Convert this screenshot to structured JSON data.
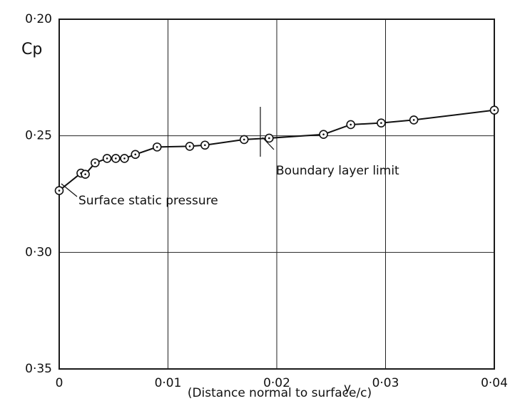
{
  "chart_data": {
    "type": "line",
    "y_label": "Cp",
    "x_symbol": "y",
    "x_label": "(Distance normal to surface/c)",
    "annotations": [
      "Boundary layer limit",
      "Surface static pressure"
    ],
    "x": [
      0,
      0.002,
      0.0024,
      0.0033,
      0.0044,
      0.0052,
      0.006,
      0.007,
      0.009,
      0.012,
      0.0134,
      0.017,
      0.0193,
      0.0243,
      0.0268,
      0.0296,
      0.0326,
      0.04
    ],
    "series": [
      {
        "name": "Cp",
        "color": "#111111",
        "values": [
          0.2735,
          0.266,
          0.2665,
          0.2616,
          0.2597,
          0.2597,
          0.2597,
          0.258,
          0.2548,
          0.2545,
          0.254,
          0.2516,
          0.251,
          0.2494,
          0.2452,
          0.2445,
          0.2432,
          0.239
        ]
      }
    ],
    "xlim": [
      0,
      0.04
    ],
    "xticks": [
      {
        "value": 0,
        "label": "0"
      },
      {
        "value": 0.01,
        "label": "0·01"
      },
      {
        "value": 0.02,
        "label": "0·02"
      },
      {
        "value": 0.03,
        "label": "0·03"
      },
      {
        "value": 0.04,
        "label": "0·04"
      }
    ],
    "ylim": [
      0.2,
      0.35
    ],
    "yinverted": true,
    "yticks": [
      {
        "value": 0.2,
        "label": "0·20"
      },
      {
        "value": 0.25,
        "label": "0·25"
      },
      {
        "value": 0.3,
        "label": "0·30"
      },
      {
        "value": 0.35,
        "label": "0·35"
      }
    ],
    "grid": true
  }
}
